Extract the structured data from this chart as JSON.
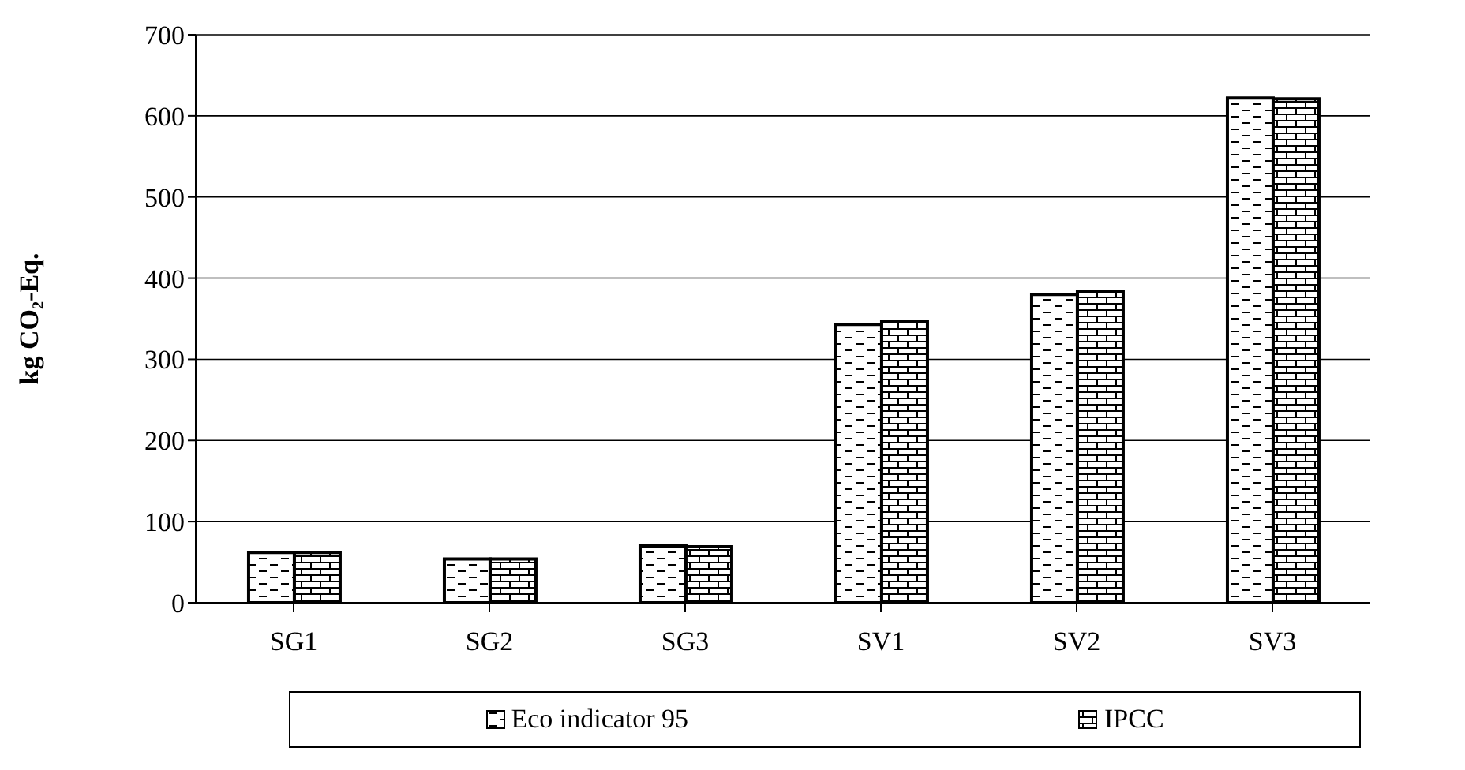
{
  "chart_data": {
    "type": "bar",
    "ylabel": "kg CO₂-Eq.",
    "categories": [
      "SG1",
      "SG2",
      "SG3",
      "SV1",
      "SV2",
      "SV3"
    ],
    "series": [
      {
        "name": "Eco indicator 95",
        "color": "#000000",
        "values": [
          62,
          54,
          70,
          343,
          380,
          622
        ]
      },
      {
        "name": "IPCC",
        "color": "#000000",
        "values": [
          62,
          54,
          69,
          347,
          384,
          621
        ]
      }
    ],
    "ylim": [
      0,
      700
    ],
    "yticks": [
      0,
      100,
      200,
      300,
      400,
      500,
      600,
      700
    ],
    "grid": "y",
    "legend": "bottom"
  }
}
